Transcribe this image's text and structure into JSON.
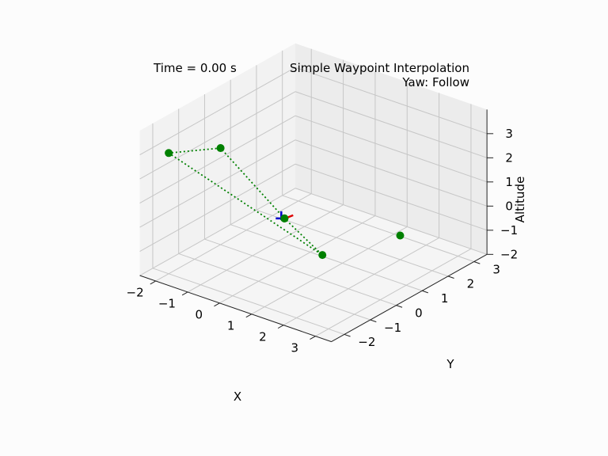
{
  "chart_data": {
    "type": "scatter",
    "projection": "3d",
    "time_label": "Time = 0.00 s",
    "title_line1": "Simple Waypoint Interpolation",
    "title_line2": "Yaw: Follow",
    "xlabel": "X",
    "ylabel": "Y",
    "zlabel": "Altitude",
    "xlim": [
      -2.5,
      3.5
    ],
    "ylim": [
      -2.5,
      3.5
    ],
    "zlim": [
      -2,
      4
    ],
    "x_ticks": [
      "−2",
      "−1",
      "0",
      "1",
      "2",
      "3"
    ],
    "y_ticks": [
      "−2",
      "−1",
      "0",
      "1",
      "2",
      "3"
    ],
    "z_ticks": [
      "−2",
      "−1",
      "0",
      "1",
      "2",
      "3"
    ],
    "grid": true,
    "path_color": "#008000",
    "waypoints": [
      {
        "x": 0.0,
        "y": 0.0,
        "z": 0.0
      },
      {
        "x": -2.0,
        "y": 0.0,
        "z": 2.0
      },
      {
        "x": -2.0,
        "y": -2.0,
        "z": 3.0
      },
      {
        "x": 2.0,
        "y": -1.0,
        "z": 0.0
      },
      {
        "x": 0.0,
        "y": 0.0,
        "z": 0.0
      },
      {
        "x": 2.0,
        "y": 2.0,
        "z": -1.0
      }
    ],
    "drone": {
      "x": 0.0,
      "y": 0.0,
      "z": 0.0,
      "arm_colors": [
        "#0000cc",
        "#dd0000"
      ]
    }
  }
}
